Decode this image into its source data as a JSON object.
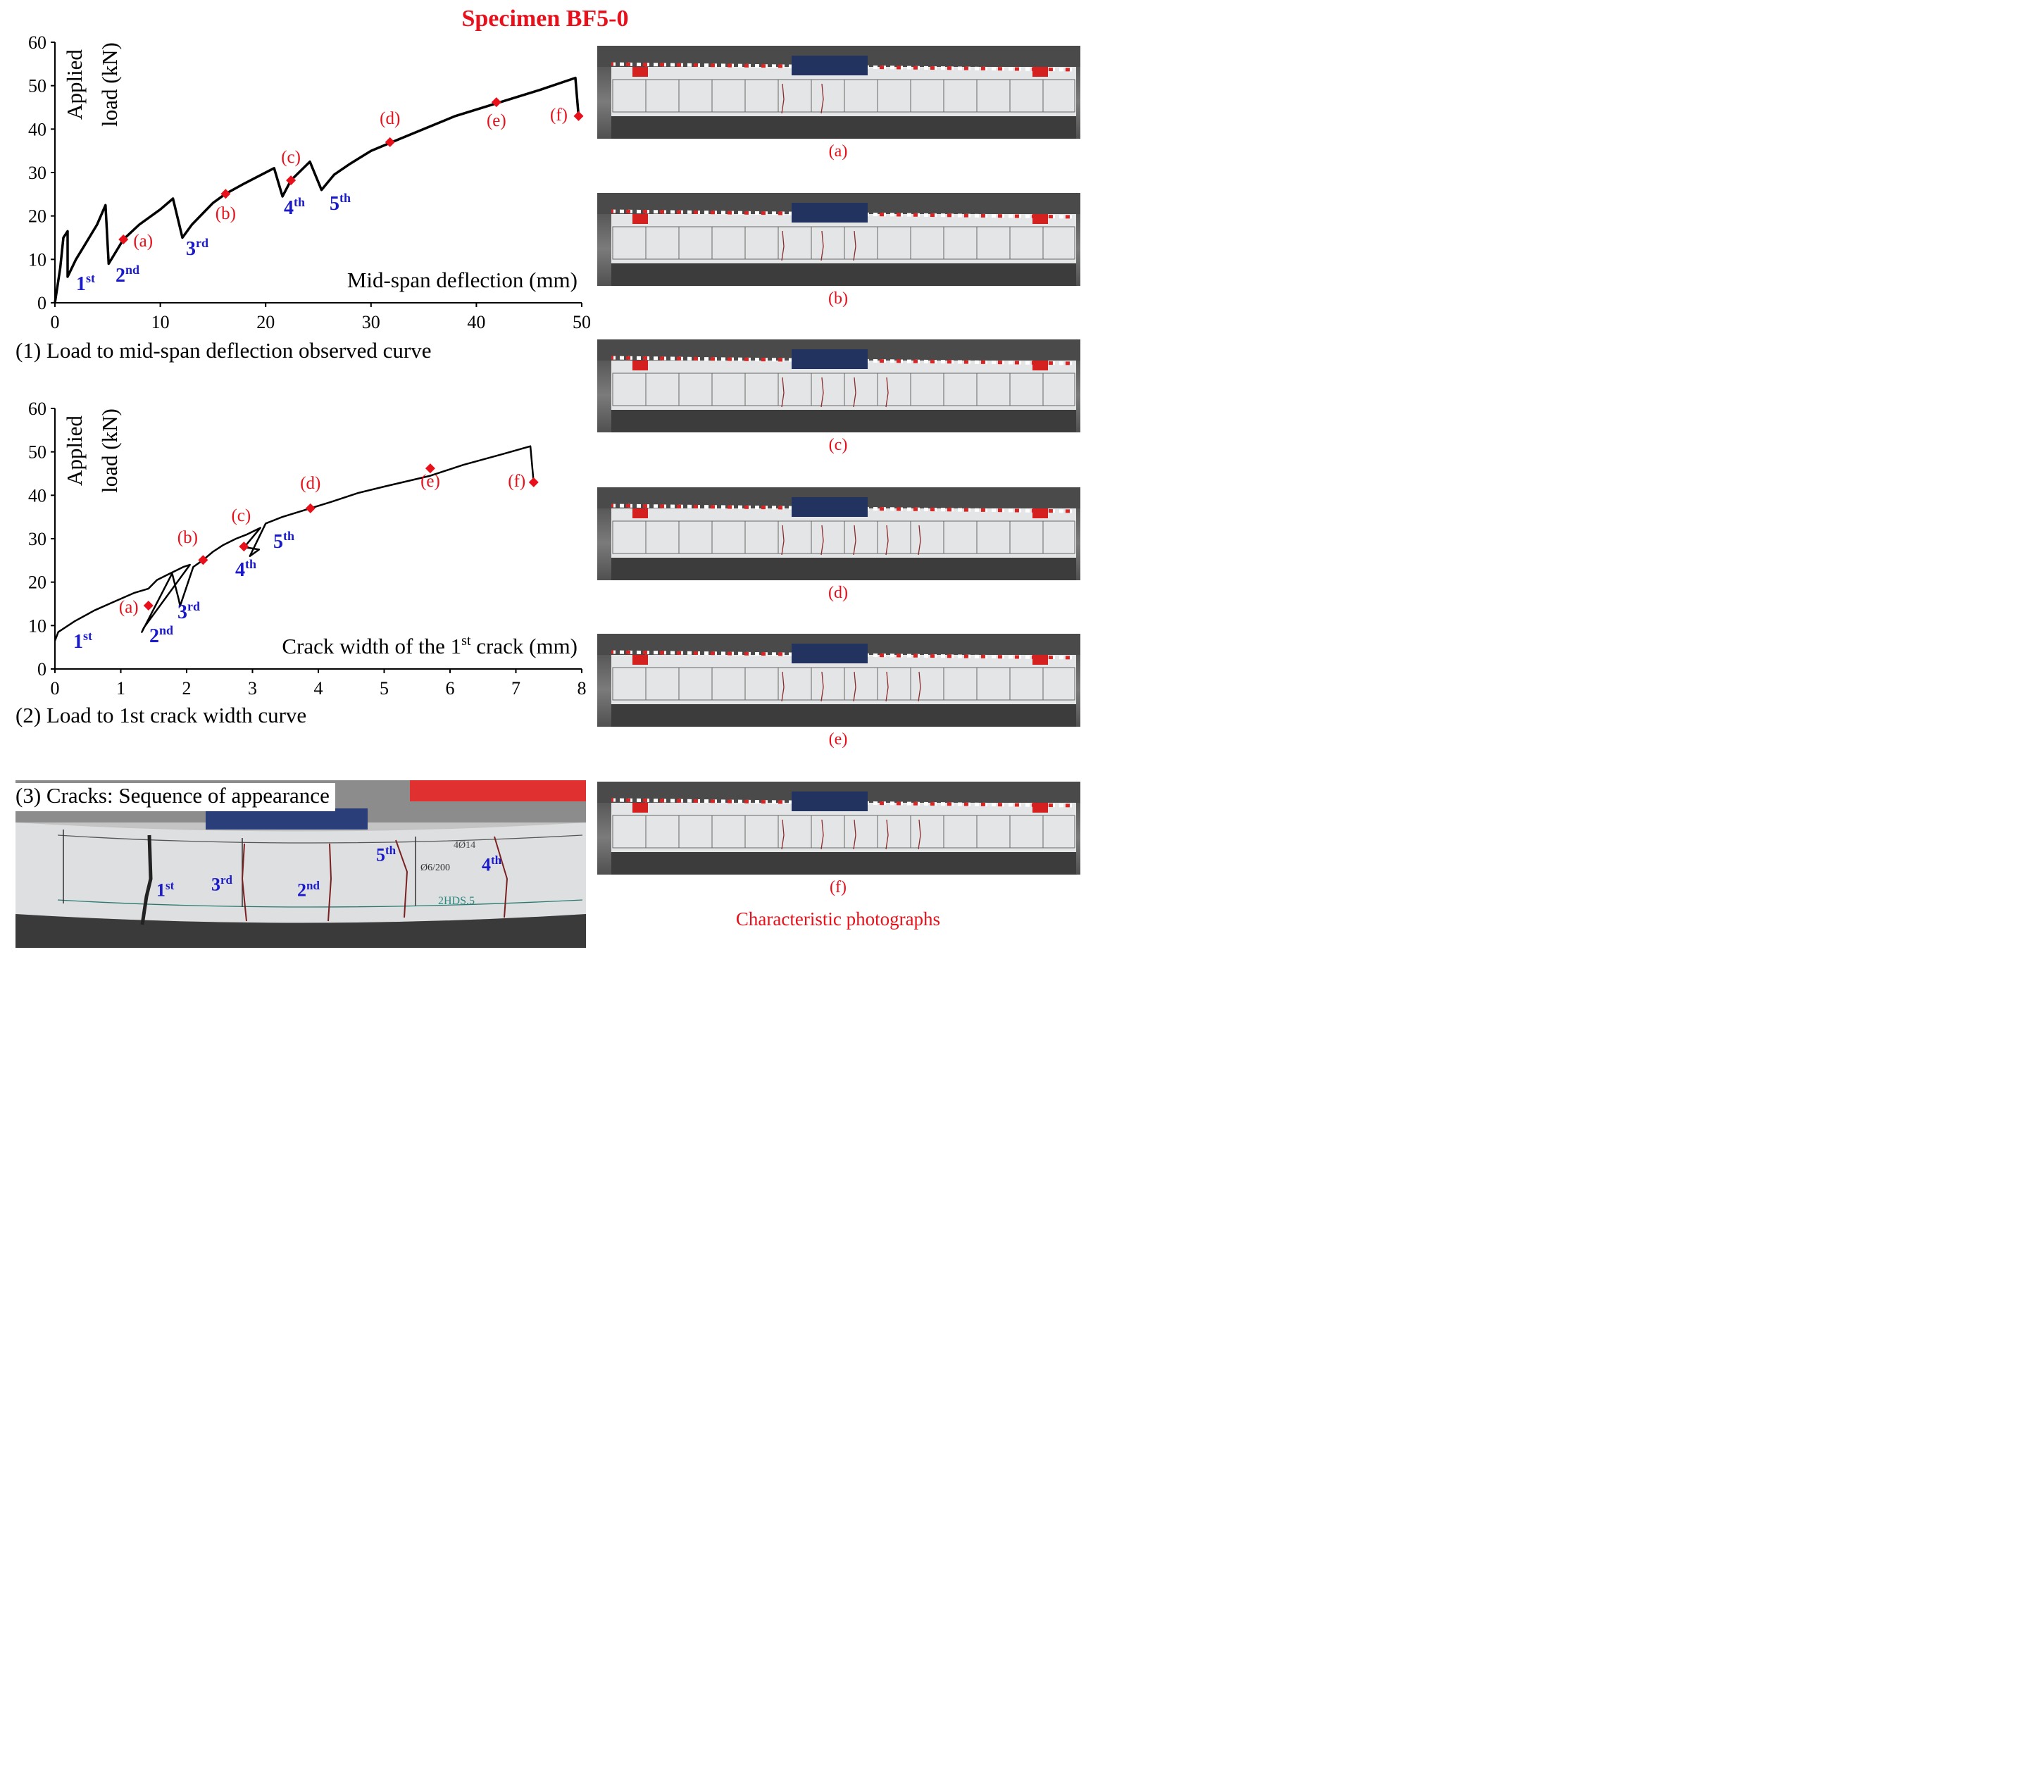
{
  "figure": {
    "title": "Specimen BF5-0",
    "photos_caption": "Characteristic photographs",
    "photo_labels": [
      "(a)",
      "(b)",
      "(c)",
      "(d)",
      "(e)",
      "(f)"
    ],
    "crack_photo_caption": "(3) Cracks: Sequence of appearance",
    "crack_photo_labels": [
      {
        "base": "1",
        "sup": "st"
      },
      {
        "base": "3",
        "sup": "rd"
      },
      {
        "base": "2",
        "sup": "nd"
      },
      {
        "base": "5",
        "sup": "th"
      },
      {
        "base": "4",
        "sup": "th"
      }
    ],
    "beam_markings": [
      "4Ø14",
      "Ø6/200",
      "2HDS.5"
    ],
    "colors": {
      "title": "#e8101a",
      "stage": "#e8101a",
      "crack": "#1a1acc",
      "curve": "#000000"
    }
  },
  "chart_data": [
    {
      "type": "line",
      "caption": "(1) Load to mid-span deflection observed curve",
      "xlabel": "Mid-span deflection (mm)",
      "ylabel_lines": [
        "Applied",
        "load (kN)"
      ],
      "xlim": [
        0,
        50
      ],
      "ylim": [
        0,
        60
      ],
      "xticks": [
        0,
        10,
        20,
        30,
        40,
        50
      ],
      "yticks": [
        0,
        10,
        20,
        30,
        40,
        50,
        60
      ],
      "series": [
        {
          "x": [
            0,
            0.5,
            0.8,
            1.2,
            1.2,
            2,
            3,
            4,
            4.8,
            5.1,
            6.5,
            8,
            10,
            11.2,
            12.1,
            13,
            14,
            15,
            16.2,
            18,
            20.8,
            21.6,
            22.4,
            24.2,
            25.3,
            26.5,
            28,
            30,
            32,
            35,
            38,
            42,
            46,
            49.4,
            49.7
          ],
          "y": [
            0,
            8,
            15,
            16.5,
            6,
            10,
            14,
            18,
            22.5,
            9,
            14.6,
            18,
            21.5,
            24,
            15,
            18,
            20.5,
            23,
            25.1,
            27.5,
            31,
            24.5,
            28.2,
            32.5,
            26,
            29.5,
            32,
            35,
            37,
            40,
            43,
            46,
            49,
            51.8,
            43
          ]
        }
      ],
      "stage_points": [
        {
          "label": "(a)",
          "x": 6.5,
          "y": 14.6
        },
        {
          "label": "(b)",
          "x": 16.2,
          "y": 25.1
        },
        {
          "label": "(c)",
          "x": 22.4,
          "y": 28.2
        },
        {
          "label": "(d)",
          "x": 31.8,
          "y": 37
        },
        {
          "label": "(e)",
          "x": 41.9,
          "y": 46.2
        },
        {
          "label": "(f)",
          "x": 49.7,
          "y": 43
        }
      ],
      "crack_labels": [
        {
          "base": "1",
          "sup": "st"
        },
        {
          "base": "2",
          "sup": "nd"
        },
        {
          "base": "3",
          "sup": "rd"
        },
        {
          "base": "4",
          "sup": "th"
        },
        {
          "base": "5",
          "sup": "th"
        }
      ]
    },
    {
      "type": "line",
      "caption": "(2) Load to 1st crack width curve",
      "xlabel": {
        "pre": "Crack width of the 1",
        "sup": "st",
        "post": " crack (mm)"
      },
      "ylabel_lines": [
        "Applied",
        "load (kN)"
      ],
      "xlim": [
        0,
        8
      ],
      "ylim": [
        0,
        60
      ],
      "xticks": [
        0,
        1,
        2,
        3,
        4,
        5,
        6,
        7,
        8
      ],
      "yticks": [
        0,
        10,
        20,
        30,
        40,
        50,
        60
      ],
      "series": [
        {
          "x": [
            0,
            0.05,
            0.3,
            0.6,
            0.9,
            1.2,
            1.42,
            1.55,
            1.75,
            1.95,
            2.05,
            1.35,
            1.32,
            1.78,
            1.88,
            1.9,
            2.1,
            2.25,
            2.4,
            2.55,
            2.75,
            2.92,
            3.05,
            3.12,
            2.9,
            2.82,
            3.1,
            2.96,
            3.2,
            3.45,
            3.88,
            4.2,
            4.6,
            5,
            5.7,
            6.2,
            6.8,
            7.22,
            7.27
          ],
          "y": [
            6.5,
            8.5,
            11,
            13.5,
            15.5,
            17.5,
            18.5,
            20.5,
            22,
            23.5,
            24,
            9.5,
            8.5,
            22,
            16,
            14.5,
            23.5,
            25.1,
            27,
            28.5,
            30,
            31,
            32,
            32.5,
            28.5,
            28.2,
            27.5,
            26,
            33.5,
            35,
            37,
            38.5,
            40.5,
            42,
            44.5,
            47,
            49.5,
            51.3,
            43
          ]
        }
      ],
      "stage_points": [
        {
          "label": "(a)",
          "x": 1.42,
          "y": 14.6
        },
        {
          "label": "(b)",
          "x": 2.25,
          "y": 25.1
        },
        {
          "label": "(c)",
          "x": 2.87,
          "y": 28.2
        },
        {
          "label": "(d)",
          "x": 3.88,
          "y": 37
        },
        {
          "label": "(e)",
          "x": 5.7,
          "y": 46.2
        },
        {
          "label": "(f)",
          "x": 7.27,
          "y": 43
        }
      ],
      "crack_labels": [
        {
          "base": "1",
          "sup": "st"
        },
        {
          "base": "2",
          "sup": "nd"
        },
        {
          "base": "3",
          "sup": "rd"
        },
        {
          "base": "4",
          "sup": "th"
        },
        {
          "base": "5",
          "sup": "th"
        }
      ]
    }
  ]
}
